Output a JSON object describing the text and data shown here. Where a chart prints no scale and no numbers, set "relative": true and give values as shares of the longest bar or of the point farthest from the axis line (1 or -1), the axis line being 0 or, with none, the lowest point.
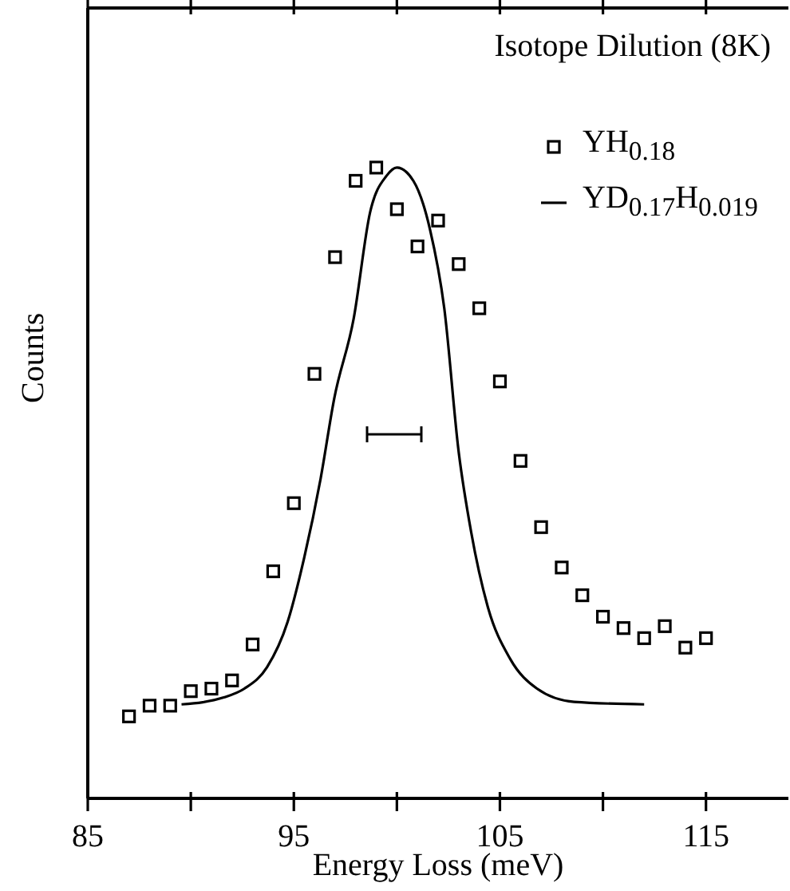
{
  "chart_data": {
    "type": "scatter",
    "title": "Isotope Dilution (8K)",
    "xlabel": "Energy Loss (meV)",
    "ylabel": "Counts",
    "relative": true,
    "xlim": [
      85,
      119
    ],
    "xticks": [
      85,
      {
        "value": 90,
        "label": null
      },
      95,
      {
        "value": 100,
        "label": null
      },
      105,
      {
        "value": 110,
        "label": null
      },
      115
    ],
    "legend": "top right",
    "series": [
      {
        "name": "YH$_{0.18}$",
        "color": "#000000",
        "marker": "square",
        "x": [
          87,
          88,
          89,
          90,
          91,
          92,
          93,
          94,
          95,
          96,
          97,
          98,
          99,
          100,
          101,
          102,
          103,
          104,
          105,
          106,
          107,
          108,
          109,
          110,
          111,
          112,
          113,
          114,
          115
        ],
        "values": [
          0.13,
          0.147,
          0.147,
          0.17,
          0.174,
          0.187,
          0.244,
          0.36,
          0.468,
          0.673,
          0.858,
          0.979,
          1,
          0.934,
          0.875,
          0.916,
          0.847,
          0.777,
          0.661,
          0.535,
          0.43,
          0.366,
          0.322,
          0.288,
          0.27,
          0.254,
          0.273,
          0.239,
          0.254
        ]
      },
      {
        "name": "YD$_{0.17}$H$_{0.019}$",
        "type": "line",
        "color": "#000000",
        "x": [
          89.55,
          91.6,
          92.6,
          93.7,
          94.7,
          95.5,
          96.3,
          96.96,
          97.9,
          98.7,
          99.5,
          100,
          100.8,
          101.6,
          102.3,
          103.0,
          103.6,
          104.4,
          105.5,
          106.8,
          108.6,
          112.0
        ],
        "values": [
          0.149,
          0.16,
          0.174,
          0.208,
          0.28,
          0.381,
          0.507,
          0.634,
          0.76,
          0.929,
          0.987,
          1.0,
          0.979,
          0.903,
          0.777,
          0.549,
          0.423,
          0.305,
          0.221,
          0.174,
          0.153,
          0.149
        ]
      }
    ]
  }
}
